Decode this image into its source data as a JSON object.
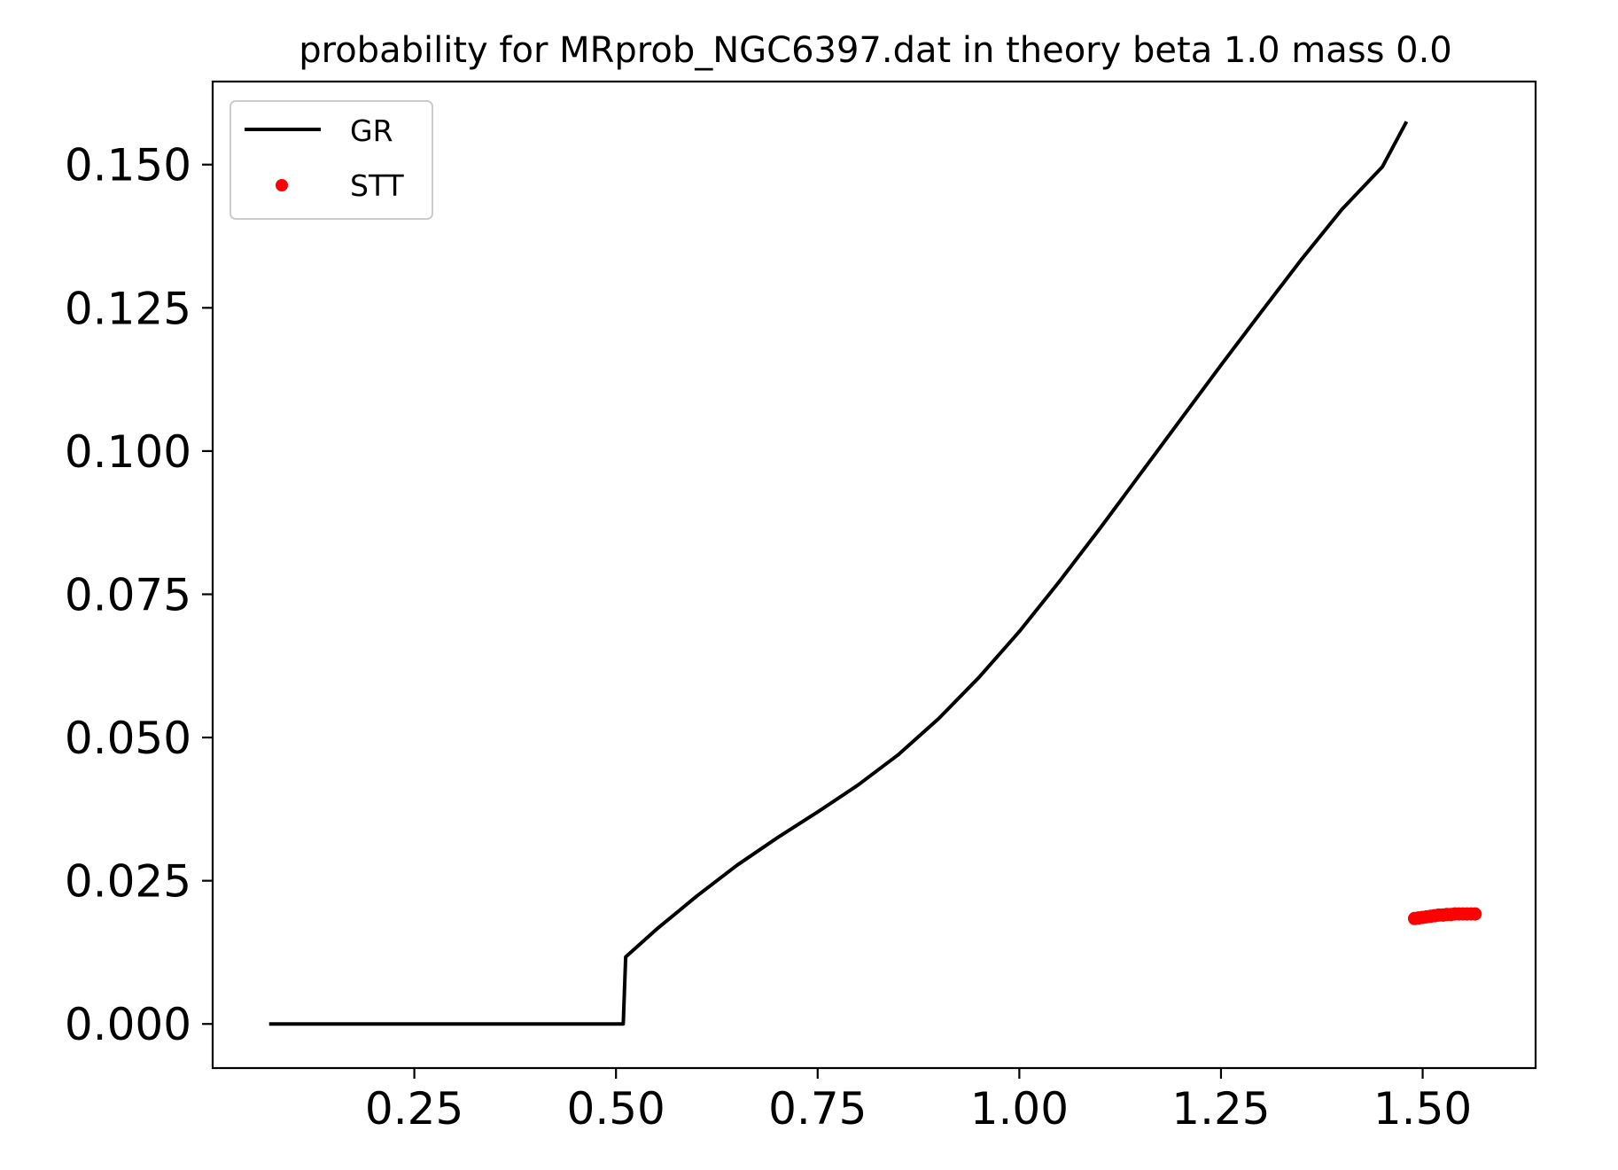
{
  "chart_data": {
    "type": "line",
    "title": "probability for MRprob_NGC6397.dat in theory beta 1.0 mass 0.0",
    "xlabel": "",
    "ylabel": "",
    "xlim": [
      0.0,
      1.64
    ],
    "ylim": [
      -0.0077,
      0.1645
    ],
    "xticks": [
      0.25,
      0.5,
      0.75,
      1.0,
      1.25,
      1.5
    ],
    "xtick_labels": [
      "0.25",
      "0.50",
      "0.75",
      "1.00",
      "1.25",
      "1.50"
    ],
    "yticks": [
      0.0,
      0.025,
      0.05,
      0.075,
      0.1,
      0.125,
      0.15
    ],
    "ytick_labels": [
      "0.000",
      "0.025",
      "0.050",
      "0.075",
      "0.100",
      "0.125",
      "0.150"
    ],
    "grid": false,
    "legend": {
      "position": "top-left"
    },
    "series": [
      {
        "name": "GR",
        "kind": "line",
        "color": "#000000",
        "x": [
          0.07,
          0.2,
          0.3,
          0.4,
          0.5,
          0.509,
          0.512,
          0.55,
          0.6,
          0.65,
          0.7,
          0.75,
          0.8,
          0.85,
          0.9,
          0.95,
          1.0,
          1.05,
          1.1,
          1.15,
          1.2,
          1.25,
          1.3,
          1.35,
          1.4,
          1.45,
          1.48
        ],
        "y": [
          0.0,
          0.0,
          0.0,
          0.0,
          0.0,
          0.0,
          0.0117,
          0.0165,
          0.0223,
          0.0277,
          0.0325,
          0.037,
          0.0417,
          0.047,
          0.0533,
          0.0605,
          0.0685,
          0.0773,
          0.0865,
          0.096,
          0.1055,
          0.115,
          0.1243,
          0.1335,
          0.1422,
          0.1496,
          0.1575
        ]
      },
      {
        "name": "STT",
        "kind": "scatter",
        "color": "#ff0000",
        "x": [
          1.49,
          1.495,
          1.5,
          1.505,
          1.51,
          1.515,
          1.52,
          1.525,
          1.53,
          1.535,
          1.54,
          1.545,
          1.55,
          1.555,
          1.56,
          1.565
        ],
        "y": [
          0.0184,
          0.0185,
          0.0186,
          0.0187,
          0.0188,
          0.0189,
          0.019,
          0.019,
          0.0191,
          0.0191,
          0.0192,
          0.0192,
          0.0192,
          0.0192,
          0.0192,
          0.0192
        ]
      }
    ]
  }
}
